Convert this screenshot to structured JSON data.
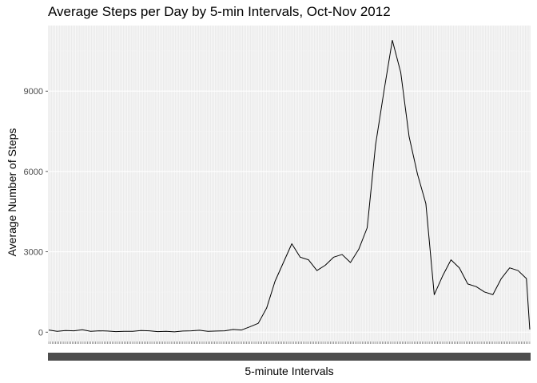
{
  "chart_data": {
    "type": "line",
    "title": "Average Steps per Day by 5-min Intervals, Oct-Nov 2012",
    "xlabel": "5-minute Intervals",
    "ylabel": "Average Number of Steps",
    "y_ticks": [
      0,
      3000,
      6000,
      9000
    ],
    "ylim": [
      -350,
      11450
    ],
    "x_categories": 288,
    "x_tick_labels": "dense, overlapping and illegible (one per interval)",
    "grid": true,
    "theme": "light gray panel, white background",
    "line_color": "#000000",
    "series": [
      {
        "x": [
          0,
          5,
          10,
          15,
          20,
          25,
          30,
          35,
          40,
          45,
          50,
          55,
          60,
          65,
          70,
          75,
          80,
          85,
          90,
          95,
          100,
          105,
          110,
          115,
          120,
          125,
          130,
          135,
          140,
          145,
          150,
          155,
          160,
          165,
          170,
          175,
          180,
          185,
          190,
          195,
          200,
          205,
          210,
          215,
          220,
          225,
          230,
          235,
          240,
          245,
          250,
          255,
          260,
          265,
          270,
          275,
          280,
          285,
          287
        ],
        "values": [
          80,
          30,
          60,
          50,
          90,
          30,
          50,
          40,
          20,
          30,
          30,
          60,
          50,
          20,
          30,
          10,
          40,
          50,
          70,
          30,
          40,
          50,
          100,
          80,
          200,
          330,
          900,
          1900,
          2600,
          3300,
          2800,
          2700,
          2300,
          2500,
          2800,
          2900,
          2600,
          3100,
          3900,
          7000,
          9000,
          10900,
          9700,
          7300,
          5900,
          4800,
          1400,
          2100,
          2700,
          2400,
          1800,
          1700,
          1500,
          1400,
          2000,
          2400,
          2300,
          2000,
          100
        ]
      }
    ]
  }
}
